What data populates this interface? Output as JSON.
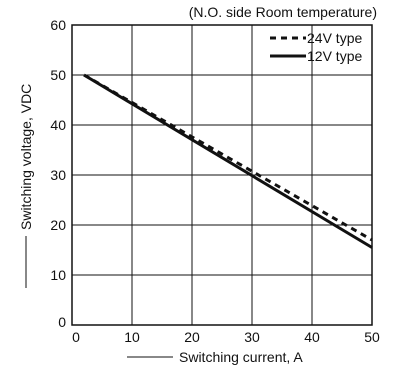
{
  "chart_data": {
    "type": "line",
    "subtitle": "(N.O. side  Room temperature)",
    "xlabel": "Switching current, A",
    "ylabel": "Switching voltage, VDC",
    "xlim": [
      0,
      50
    ],
    "ylim": [
      0,
      60
    ],
    "x_ticks": [
      0,
      10,
      20,
      30,
      40,
      50
    ],
    "y_ticks": [
      0,
      10,
      20,
      30,
      40,
      50,
      60
    ],
    "grid": true,
    "legend_position": "top-right",
    "series": [
      {
        "name": "24V type",
        "style": "dashed",
        "color": "#111111",
        "x": [
          2,
          50
        ],
        "y": [
          50,
          17
        ]
      },
      {
        "name": "12V type",
        "style": "solid",
        "color": "#111111",
        "x": [
          2,
          50
        ],
        "y": [
          50,
          15.5
        ]
      }
    ]
  }
}
